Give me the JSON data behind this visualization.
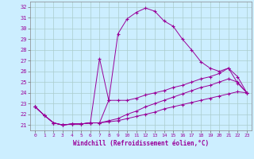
{
  "xlabel": "Windchill (Refroidissement éolien,°C)",
  "xlim": [
    -0.5,
    23.5
  ],
  "ylim": [
    20.5,
    32.5
  ],
  "yticks": [
    21,
    22,
    23,
    24,
    25,
    26,
    27,
    28,
    29,
    30,
    31,
    32
  ],
  "xticks": [
    0,
    1,
    2,
    3,
    4,
    5,
    6,
    7,
    8,
    9,
    10,
    11,
    12,
    13,
    14,
    15,
    16,
    17,
    18,
    19,
    20,
    21,
    22,
    23
  ],
  "bg_color": "#cceeff",
  "line_color": "#990099",
  "grid_color": "#aacccc",
  "lines": [
    {
      "x": [
        0,
        1,
        2,
        3,
        4,
        5,
        6,
        7,
        8,
        9,
        10,
        11,
        12,
        13,
        14,
        15,
        16,
        17,
        18,
        19,
        20,
        21,
        22,
        23
      ],
      "y": [
        22.7,
        21.9,
        21.2,
        21.0,
        21.1,
        21.1,
        21.2,
        21.2,
        23.3,
        29.5,
        30.9,
        31.5,
        31.9,
        31.6,
        30.7,
        30.2,
        29.0,
        28.0,
        26.9,
        26.3,
        26.0,
        26.3,
        24.9,
        24.0
      ]
    },
    {
      "x": [
        0,
        1,
        2,
        3,
        4,
        5,
        6,
        7,
        8,
        9,
        10,
        11,
        12,
        13,
        14,
        15,
        16,
        17,
        18,
        19,
        20,
        21,
        22,
        23
      ],
      "y": [
        22.7,
        21.9,
        21.2,
        21.0,
        21.1,
        21.1,
        21.2,
        27.2,
        23.3,
        23.3,
        23.3,
        23.5,
        23.8,
        24.0,
        24.2,
        24.5,
        24.7,
        25.0,
        25.3,
        25.5,
        25.8,
        26.3,
        25.5,
        24.0
      ]
    },
    {
      "x": [
        0,
        1,
        2,
        3,
        4,
        5,
        6,
        7,
        8,
        9,
        10,
        11,
        12,
        13,
        14,
        15,
        16,
        17,
        18,
        19,
        20,
        21,
        22,
        23
      ],
      "y": [
        22.7,
        21.9,
        21.2,
        21.0,
        21.1,
        21.1,
        21.2,
        21.2,
        21.3,
        21.4,
        21.6,
        21.8,
        22.0,
        22.2,
        22.5,
        22.7,
        22.9,
        23.1,
        23.3,
        23.5,
        23.7,
        23.9,
        24.1,
        24.0
      ]
    },
    {
      "x": [
        0,
        1,
        2,
        3,
        4,
        5,
        6,
        7,
        8,
        9,
        10,
        11,
        12,
        13,
        14,
        15,
        16,
        17,
        18,
        19,
        20,
        21,
        22,
        23
      ],
      "y": [
        22.7,
        21.9,
        21.2,
        21.0,
        21.1,
        21.1,
        21.2,
        21.2,
        21.4,
        21.6,
        22.0,
        22.3,
        22.7,
        23.0,
        23.3,
        23.6,
        23.9,
        24.2,
        24.5,
        24.7,
        25.0,
        25.3,
        25.0,
        24.0
      ]
    }
  ]
}
